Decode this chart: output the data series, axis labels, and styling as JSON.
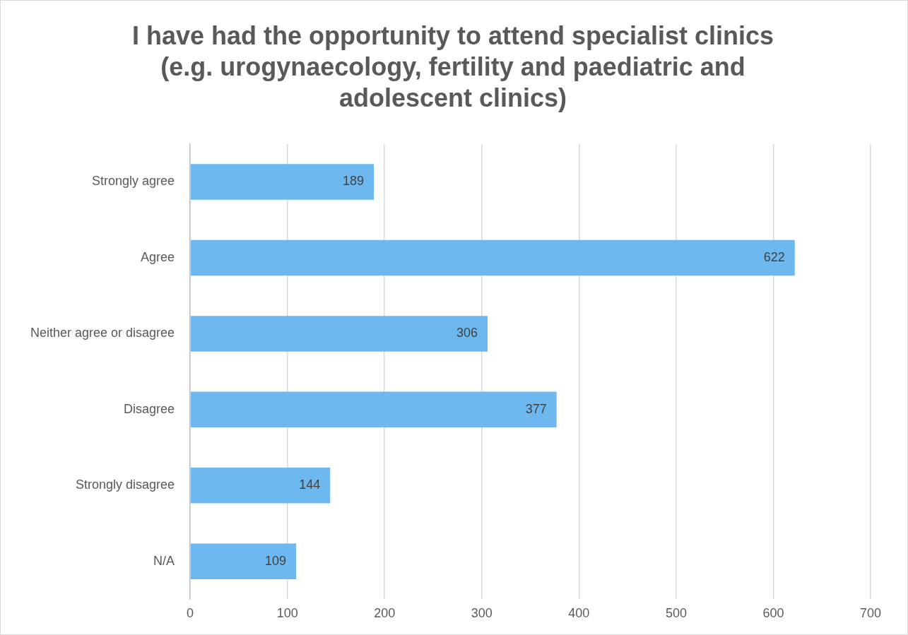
{
  "chart_data": {
    "type": "bar",
    "orientation": "horizontal",
    "title": "I have had the opportunity to attend specialist clinics (e.g. urogynaecology, fertility and paediatric and adolescent clinics)",
    "categories": [
      "Strongly agree",
      "Agree",
      "Neither agree or disagree",
      "Disagree",
      "Strongly disagree",
      "N/A"
    ],
    "values": [
      189,
      622,
      306,
      377,
      144,
      109
    ],
    "color": "#6cb8ef",
    "xlim": [
      0,
      700
    ],
    "xticks": [
      0,
      100,
      200,
      300,
      400,
      500,
      600,
      700
    ],
    "grid": "x",
    "data_labels": true,
    "legend": false
  }
}
